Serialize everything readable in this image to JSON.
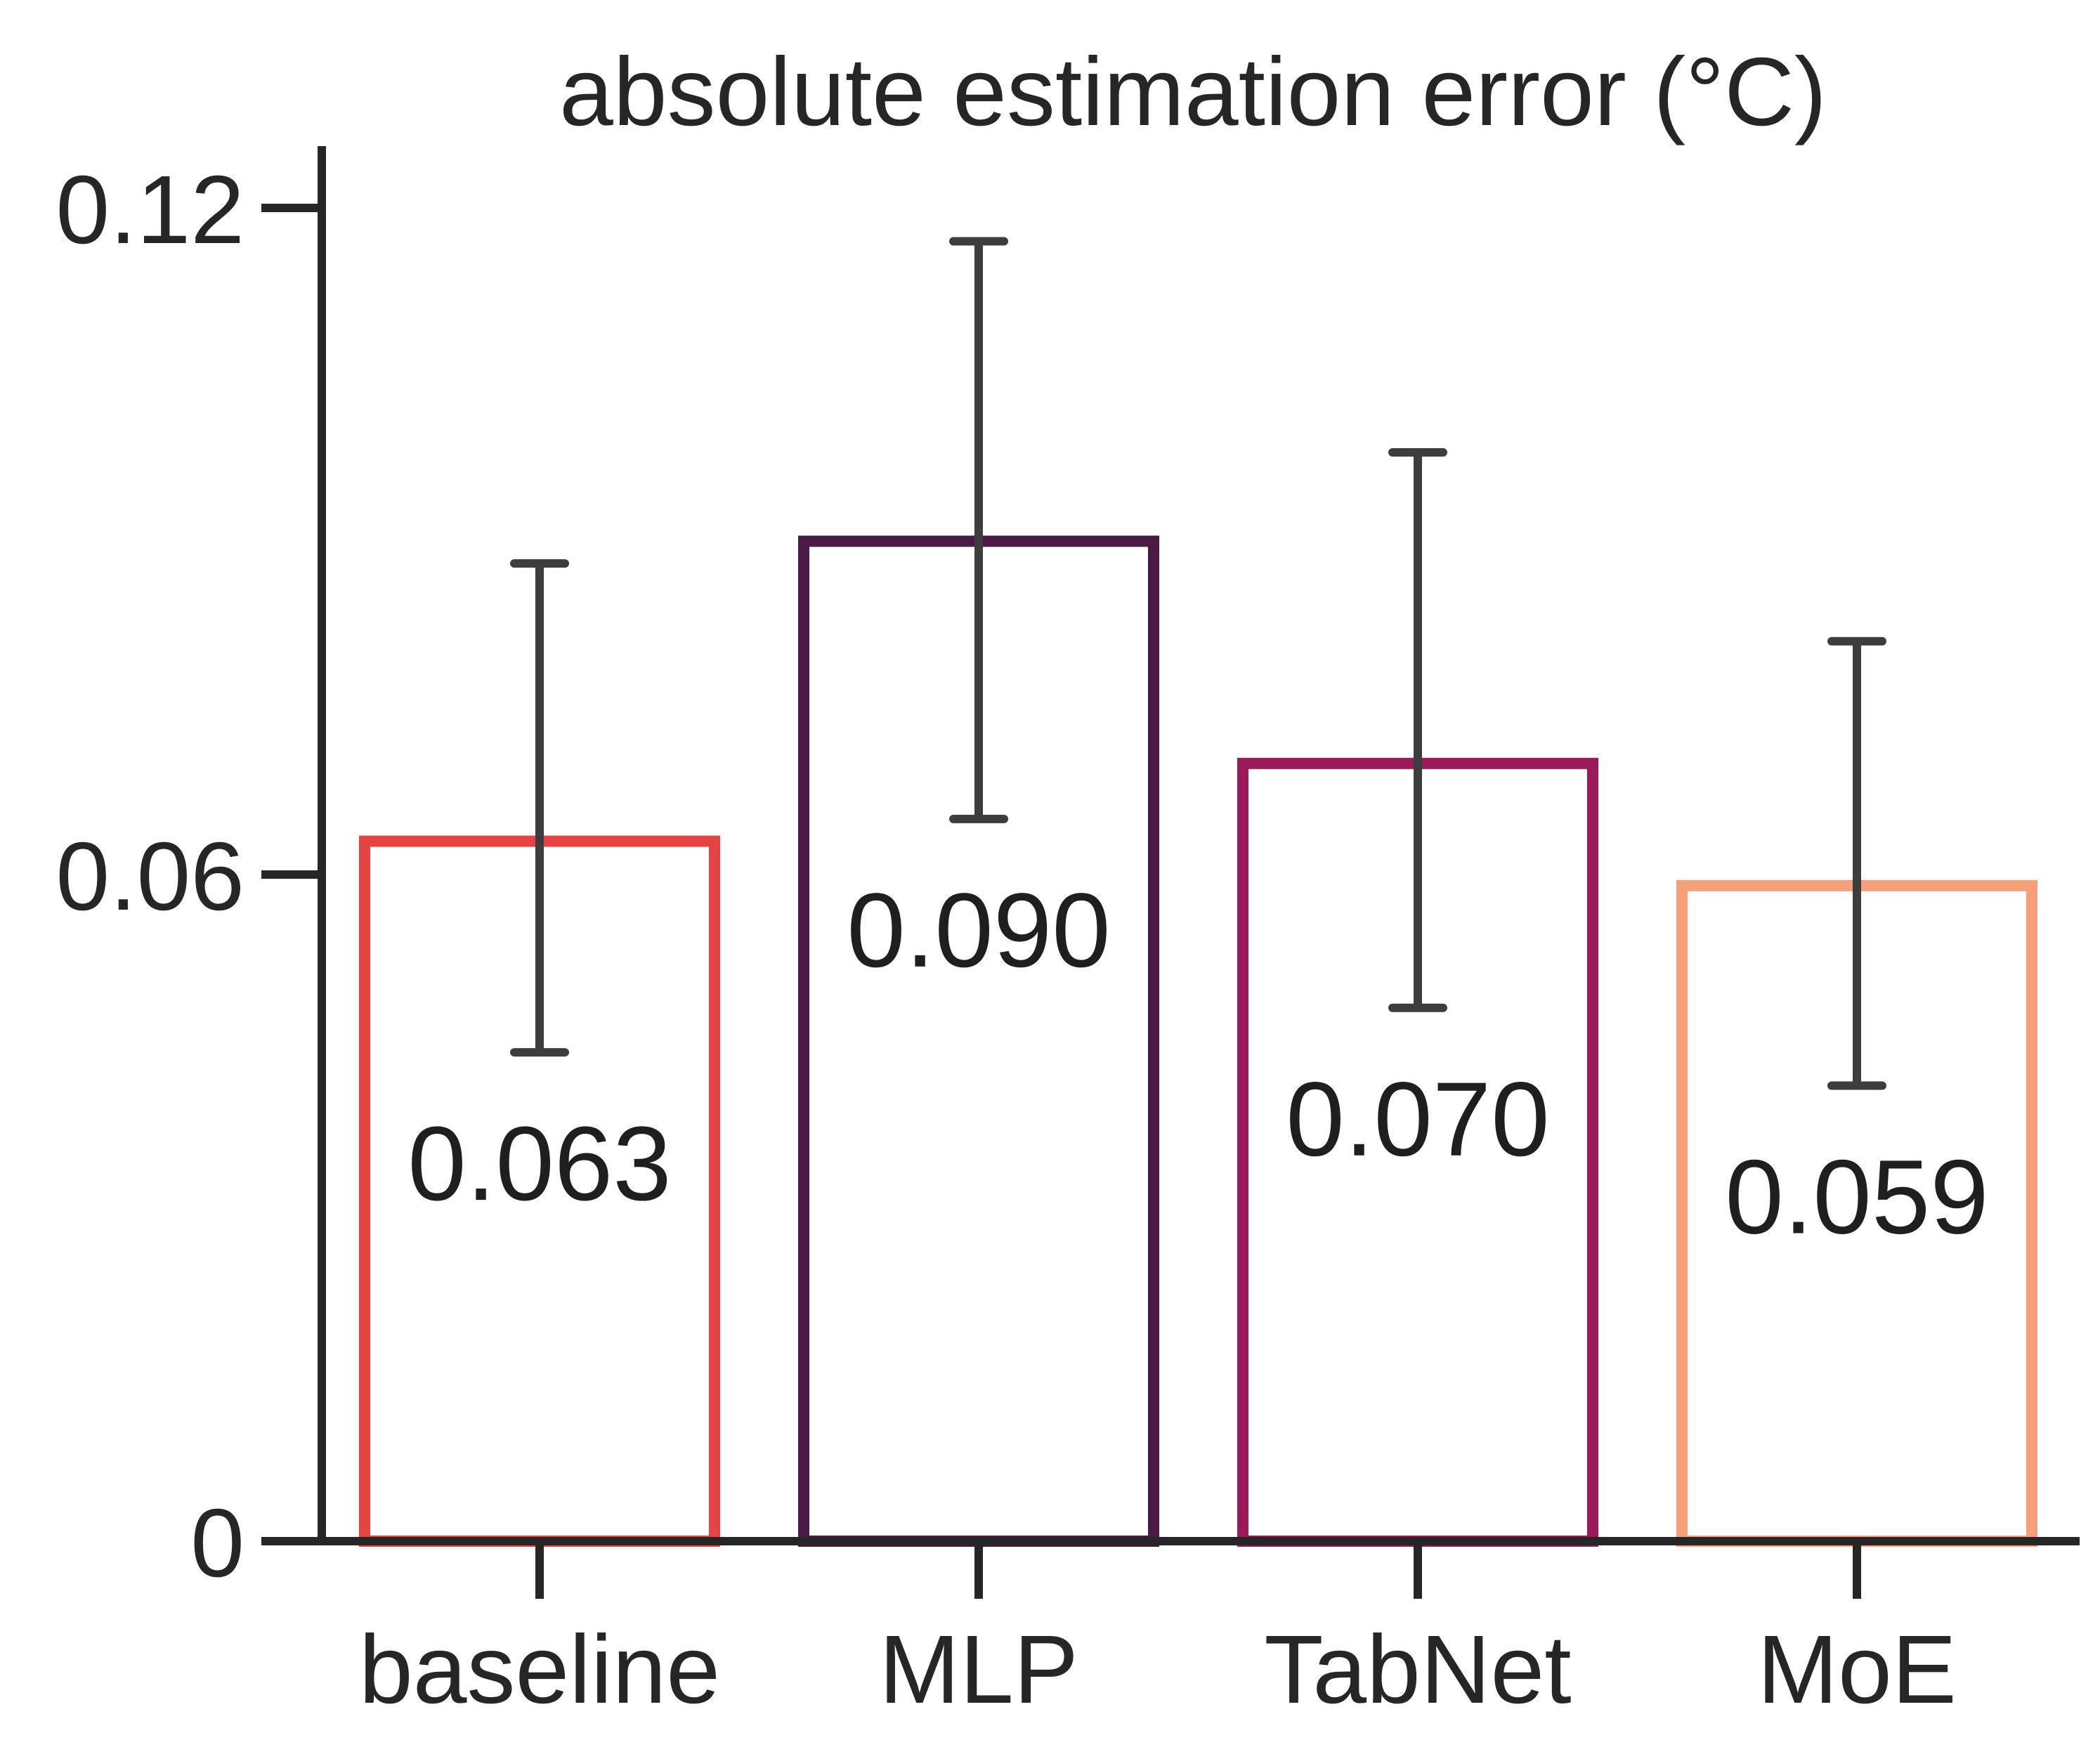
{
  "chart_data": {
    "type": "bar",
    "title": "absolute estimation error (°C)",
    "categories": [
      "baseline",
      "MLP",
      "TabNet",
      "MoE"
    ],
    "values": [
      0.063,
      0.09,
      0.07,
      0.059
    ],
    "value_labels": [
      "0.063",
      "0.090",
      "0.070",
      "0.059"
    ],
    "error_low": [
      0.044,
      0.065,
      0.048,
      0.041
    ],
    "error_high": [
      0.088,
      0.117,
      0.098,
      0.081
    ],
    "bar_colors": [
      "#e84343",
      "#4a1945",
      "#9c1a5a",
      "#f5a07a"
    ],
    "yticks": [
      0,
      0.06,
      0.12
    ],
    "ytick_labels": [
      "0",
      "0.06",
      "0.12"
    ],
    "ylim": [
      0,
      0.126
    ],
    "xlabel": "",
    "ylabel": "",
    "grid": false,
    "fill": "none"
  }
}
